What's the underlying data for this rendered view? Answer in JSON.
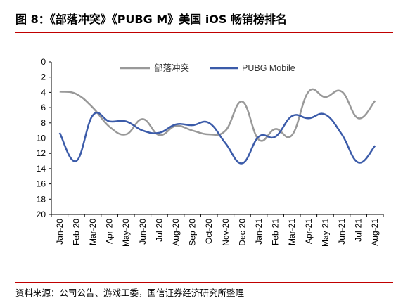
{
  "title": "图 8：《部落冲突》《PUBG M》美国 iOS 畅销榜排名",
  "source": "资料来源：公司公告、游戏工委，国信证券经济研究所整理",
  "chart_data": {
    "type": "line",
    "title": "图 8：《部落冲突》《PUBG M》美国 iOS 畅销榜排名",
    "categories": [
      "Jan-20",
      "Feb-20",
      "Mar-20",
      "Apr-20",
      "May-20",
      "Jun-20",
      "Jul-20",
      "Aug-20",
      "Sep-20",
      "Oct-20",
      "Nov-20",
      "Dec-20",
      "Jan-21",
      "Feb-21",
      "Mar-21",
      "Apr-21",
      "May-21",
      "Jun-21",
      "Jul-21",
      "Aug-21"
    ],
    "yticks": [
      0,
      2,
      4,
      6,
      8,
      10,
      12,
      14,
      16,
      18,
      20
    ],
    "ylim": [
      0,
      20
    ],
    "y_inverted": true,
    "grid": false,
    "legend_position": "top",
    "series": [
      {
        "name": "部落冲突",
        "color": "#999999",
        "values": [
          3.9,
          4.2,
          6.0,
          8.5,
          9.5,
          7.5,
          9.6,
          8.4,
          9.0,
          9.5,
          9.0,
          5.2,
          10.2,
          8.8,
          9.6,
          3.9,
          4.6,
          3.9,
          7.4,
          5.1
        ]
      },
      {
        "name": "PUBG Mobile",
        "color": "#3b5ba9",
        "values": [
          9.3,
          13.0,
          7.0,
          7.8,
          7.8,
          9.0,
          9.3,
          8.2,
          8.3,
          8.0,
          10.7,
          13.3,
          9.8,
          9.8,
          7.1,
          7.4,
          6.9,
          9.5,
          13.2,
          11.0
        ]
      }
    ]
  }
}
